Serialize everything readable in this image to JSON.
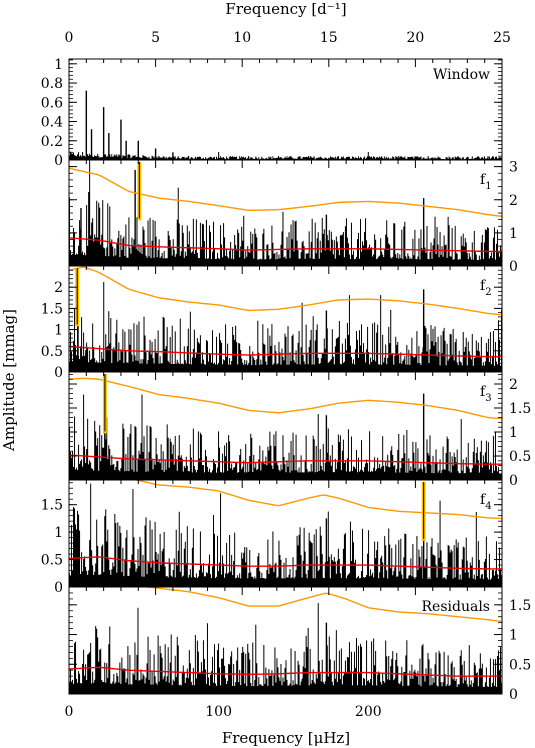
{
  "chart_data": {
    "type": "line",
    "top_axis": {
      "label": "Frequency [d⁻¹]",
      "range": [
        0,
        25
      ],
      "ticks": [
        0,
        5,
        10,
        15,
        20,
        25
      ],
      "tick_labels": [
        "0",
        "5",
        "10",
        "15",
        "20",
        "25"
      ]
    },
    "bottom_axis": {
      "label": "Frequency [μHz]",
      "range": [
        0,
        289.35
      ],
      "ticks": [
        0,
        100,
        200
      ],
      "tick_labels": [
        "0",
        "100",
        "200"
      ]
    },
    "ylabel": "Amplitude [mmag]",
    "colors": {
      "data": "#000000",
      "significance": "#ff9900",
      "noise": "#ee0000",
      "marker": "#ffc000"
    },
    "panels": [
      {
        "id": "window",
        "label": "Window",
        "subscript": "",
        "ylim": [
          0,
          1.05
        ],
        "y_axis_side": "left",
        "ticks": [
          0,
          0.2,
          0.4,
          0.6,
          0.8,
          1
        ],
        "tick_labels": [
          "0",
          "0.2",
          "0.4",
          "0.6",
          "0.8",
          "1"
        ],
        "noise_floor": 0.02,
        "peaks": [
          [
            1.0,
            0.72
          ],
          [
            1.3,
            0.32
          ],
          [
            2.0,
            0.55
          ],
          [
            2.3,
            0.28
          ],
          [
            3.0,
            0.42
          ],
          [
            3.3,
            0.2
          ],
          [
            4.0,
            0.2
          ],
          [
            5.0,
            0.12
          ],
          [
            6.0,
            0.08
          ]
        ],
        "marker_freq_uhz": null
      },
      {
        "id": "f1",
        "label": "f",
        "subscript": "1",
        "ylim": [
          0,
          3.2
        ],
        "y_axis_side": "right",
        "ticks": [
          0,
          1,
          2,
          3
        ],
        "tick_labels": [
          "0",
          "1",
          "2",
          "3"
        ],
        "noise_floor": 0.75,
        "significance_curve": {
          "x": [
            0,
            20,
            40,
            60,
            80,
            100,
            120,
            140,
            160,
            180,
            200,
            220,
            240,
            260,
            280,
            289
          ],
          "y": [
            2.95,
            2.75,
            2.25,
            2.05,
            1.95,
            1.82,
            1.68,
            1.7,
            1.8,
            1.92,
            1.95,
            1.9,
            1.8,
            1.7,
            1.55,
            1.5
          ]
        },
        "noise_curve": {
          "x": [
            0,
            20,
            40,
            60,
            80,
            100,
            120,
            140,
            160,
            180,
            200,
            220,
            240,
            260,
            280,
            289
          ],
          "y": [
            0.85,
            0.78,
            0.62,
            0.58,
            0.55,
            0.52,
            0.48,
            0.5,
            0.52,
            0.52,
            0.52,
            0.5,
            0.48,
            0.46,
            0.44,
            0.44
          ]
        },
        "peaks": [
          [
            44.2,
            2.9
          ],
          [
            237,
            2.05
          ],
          [
            172,
            1.55
          ],
          [
            8.0,
            1.75
          ]
        ],
        "marker_freq_uhz": 47.0
      },
      {
        "id": "f2",
        "label": "f",
        "subscript": "2",
        "ylim": [
          0,
          2.5
        ],
        "y_axis_side": "left",
        "ticks": [
          0,
          0.5,
          1,
          1.5,
          2
        ],
        "tick_labels": [
          "0",
          "0.5",
          "1",
          "1.5",
          "2"
        ],
        "noise_floor": 0.58,
        "significance_curve": {
          "x": [
            0,
            10,
            20,
            40,
            60,
            80,
            100,
            120,
            140,
            160,
            180,
            200,
            220,
            240,
            260,
            280,
            289
          ],
          "y": [
            2.4,
            2.48,
            2.35,
            1.95,
            1.75,
            1.65,
            1.58,
            1.45,
            1.48,
            1.58,
            1.7,
            1.72,
            1.68,
            1.6,
            1.5,
            1.38,
            1.35
          ]
        },
        "noise_curve": {
          "x": [
            0,
            20,
            40,
            60,
            80,
            100,
            120,
            140,
            160,
            180,
            200,
            220,
            240,
            260,
            280,
            289
          ],
          "y": [
            0.6,
            0.55,
            0.5,
            0.48,
            0.45,
            0.42,
            0.4,
            0.42,
            0.44,
            0.44,
            0.44,
            0.42,
            0.4,
            0.38,
            0.36,
            0.36
          ]
        },
        "peaks": [
          [
            6.0,
            2.2
          ],
          [
            237,
            1.95
          ],
          [
            172,
            1.45
          ]
        ],
        "marker_freq_uhz": 5.5
      },
      {
        "id": "f3",
        "label": "f",
        "subscript": "3",
        "ylim": [
          0,
          2.25
        ],
        "y_axis_side": "right",
        "ticks": [
          0,
          0.5,
          1,
          1.5,
          2
        ],
        "tick_labels": [
          "0",
          "0.5",
          "1",
          "1.5",
          "2"
        ],
        "noise_floor": 0.52,
        "significance_curve": {
          "x": [
            0,
            10,
            20,
            40,
            60,
            80,
            100,
            120,
            140,
            160,
            180,
            200,
            220,
            240,
            260,
            280,
            289
          ],
          "y": [
            2.1,
            2.12,
            2.1,
            1.95,
            1.78,
            1.7,
            1.6,
            1.45,
            1.4,
            1.48,
            1.6,
            1.66,
            1.62,
            1.55,
            1.45,
            1.3,
            1.28
          ]
        },
        "noise_curve": {
          "x": [
            0,
            20,
            40,
            60,
            80,
            100,
            120,
            140,
            160,
            180,
            200,
            220,
            240,
            260,
            280,
            289
          ],
          "y": [
            0.52,
            0.48,
            0.44,
            0.42,
            0.4,
            0.38,
            0.36,
            0.38,
            0.4,
            0.4,
            0.4,
            0.38,
            0.36,
            0.34,
            0.33,
            0.33
          ]
        },
        "peaks": [
          [
            24.0,
            1.8
          ],
          [
            237,
            1.8
          ],
          [
            172,
            1.35
          ]
        ],
        "marker_freq_uhz": 24.0
      },
      {
        "id": "f4",
        "label": "f",
        "subscript": "4",
        "ylim": [
          0,
          1.95
        ],
        "y_axis_side": "left",
        "ticks": [
          0,
          0.5,
          1,
          1.5
        ],
        "tick_labels": [
          "0",
          "0.5",
          "1",
          "1.5"
        ],
        "noise_floor": 0.48,
        "significance_curve": {
          "x": [
            40,
            60,
            80,
            100,
            120,
            140,
            160,
            170,
            180,
            200,
            220,
            240,
            260,
            280,
            289
          ],
          "y": [
            1.98,
            1.86,
            1.82,
            1.75,
            1.58,
            1.48,
            1.62,
            1.68,
            1.62,
            1.45,
            1.38,
            1.35,
            1.32,
            1.26,
            1.25
          ]
        },
        "noise_curve": {
          "x": [
            0,
            20,
            40,
            60,
            80,
            100,
            120,
            140,
            160,
            180,
            200,
            220,
            240,
            260,
            280,
            289
          ],
          "y": [
            0.52,
            0.55,
            0.48,
            0.44,
            0.42,
            0.4,
            0.38,
            0.38,
            0.4,
            0.4,
            0.4,
            0.38,
            0.36,
            0.34,
            0.33,
            0.33
          ]
        },
        "peaks": [
          [
            237,
            1.7
          ],
          [
            172,
            1.25
          ]
        ],
        "marker_freq_uhz": 237.0
      },
      {
        "id": "residuals",
        "label": "Residuals",
        "subscript": "",
        "ylim": [
          0,
          1.8
        ],
        "y_axis_side": "right",
        "ticks": [
          0,
          0.5,
          1,
          1.5
        ],
        "tick_labels": [
          "0",
          "0.5",
          "1",
          "1.5"
        ],
        "noise_floor": 0.45,
        "significance_curve": {
          "x": [
            45,
            60,
            80,
            100,
            120,
            140,
            160,
            172,
            185,
            200,
            220,
            240,
            260,
            280,
            289
          ],
          "y": [
            1.82,
            1.78,
            1.72,
            1.62,
            1.48,
            1.48,
            1.62,
            1.7,
            1.6,
            1.45,
            1.38,
            1.35,
            1.3,
            1.25,
            1.22
          ]
        },
        "noise_curve": {
          "x": [
            0,
            20,
            40,
            60,
            80,
            100,
            120,
            140,
            160,
            180,
            200,
            220,
            240,
            260,
            280,
            289
          ],
          "y": [
            0.42,
            0.45,
            0.4,
            0.38,
            0.36,
            0.34,
            0.33,
            0.34,
            0.36,
            0.36,
            0.36,
            0.34,
            0.32,
            0.3,
            0.3,
            0.3
          ]
        },
        "peaks": [
          [
            172,
            1.2
          ]
        ],
        "marker_freq_uhz": null
      }
    ]
  }
}
